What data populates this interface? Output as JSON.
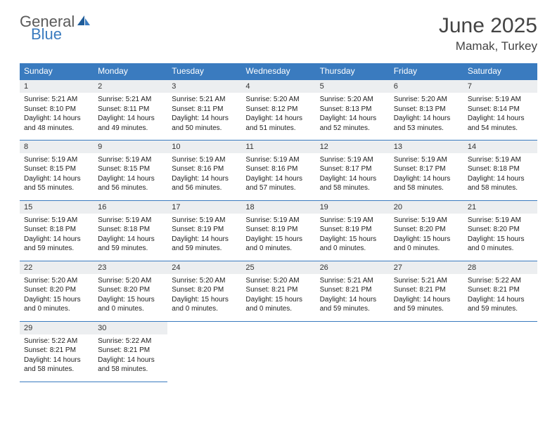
{
  "logo": {
    "text_general": "General",
    "text_blue": "Blue",
    "icon_color_dark": "#1f5c99",
    "icon_color_light": "#3a7bbf"
  },
  "header": {
    "month_title": "June 2025",
    "location": "Mamak, Turkey"
  },
  "colors": {
    "header_bg": "#3a7bbf",
    "header_text": "#ffffff",
    "day_num_bg": "#eceef0",
    "border": "#3a7bbf",
    "body_bg": "#ffffff",
    "text": "#222222"
  },
  "typography": {
    "month_title_size": 30,
    "location_size": 17,
    "weekday_header_size": 12,
    "day_num_size": 11,
    "day_body_size": 10
  },
  "weekdays": [
    "Sunday",
    "Monday",
    "Tuesday",
    "Wednesday",
    "Thursday",
    "Friday",
    "Saturday"
  ],
  "days": [
    {
      "num": "1",
      "sunrise": "Sunrise: 5:21 AM",
      "sunset": "Sunset: 8:10 PM",
      "daylight1": "Daylight: 14 hours",
      "daylight2": "and 48 minutes."
    },
    {
      "num": "2",
      "sunrise": "Sunrise: 5:21 AM",
      "sunset": "Sunset: 8:11 PM",
      "daylight1": "Daylight: 14 hours",
      "daylight2": "and 49 minutes."
    },
    {
      "num": "3",
      "sunrise": "Sunrise: 5:21 AM",
      "sunset": "Sunset: 8:11 PM",
      "daylight1": "Daylight: 14 hours",
      "daylight2": "and 50 minutes."
    },
    {
      "num": "4",
      "sunrise": "Sunrise: 5:20 AM",
      "sunset": "Sunset: 8:12 PM",
      "daylight1": "Daylight: 14 hours",
      "daylight2": "and 51 minutes."
    },
    {
      "num": "5",
      "sunrise": "Sunrise: 5:20 AM",
      "sunset": "Sunset: 8:13 PM",
      "daylight1": "Daylight: 14 hours",
      "daylight2": "and 52 minutes."
    },
    {
      "num": "6",
      "sunrise": "Sunrise: 5:20 AM",
      "sunset": "Sunset: 8:13 PM",
      "daylight1": "Daylight: 14 hours",
      "daylight2": "and 53 minutes."
    },
    {
      "num": "7",
      "sunrise": "Sunrise: 5:19 AM",
      "sunset": "Sunset: 8:14 PM",
      "daylight1": "Daylight: 14 hours",
      "daylight2": "and 54 minutes."
    },
    {
      "num": "8",
      "sunrise": "Sunrise: 5:19 AM",
      "sunset": "Sunset: 8:15 PM",
      "daylight1": "Daylight: 14 hours",
      "daylight2": "and 55 minutes."
    },
    {
      "num": "9",
      "sunrise": "Sunrise: 5:19 AM",
      "sunset": "Sunset: 8:15 PM",
      "daylight1": "Daylight: 14 hours",
      "daylight2": "and 56 minutes."
    },
    {
      "num": "10",
      "sunrise": "Sunrise: 5:19 AM",
      "sunset": "Sunset: 8:16 PM",
      "daylight1": "Daylight: 14 hours",
      "daylight2": "and 56 minutes."
    },
    {
      "num": "11",
      "sunrise": "Sunrise: 5:19 AM",
      "sunset": "Sunset: 8:16 PM",
      "daylight1": "Daylight: 14 hours",
      "daylight2": "and 57 minutes."
    },
    {
      "num": "12",
      "sunrise": "Sunrise: 5:19 AM",
      "sunset": "Sunset: 8:17 PM",
      "daylight1": "Daylight: 14 hours",
      "daylight2": "and 58 minutes."
    },
    {
      "num": "13",
      "sunrise": "Sunrise: 5:19 AM",
      "sunset": "Sunset: 8:17 PM",
      "daylight1": "Daylight: 14 hours",
      "daylight2": "and 58 minutes."
    },
    {
      "num": "14",
      "sunrise": "Sunrise: 5:19 AM",
      "sunset": "Sunset: 8:18 PM",
      "daylight1": "Daylight: 14 hours",
      "daylight2": "and 58 minutes."
    },
    {
      "num": "15",
      "sunrise": "Sunrise: 5:19 AM",
      "sunset": "Sunset: 8:18 PM",
      "daylight1": "Daylight: 14 hours",
      "daylight2": "and 59 minutes."
    },
    {
      "num": "16",
      "sunrise": "Sunrise: 5:19 AM",
      "sunset": "Sunset: 8:18 PM",
      "daylight1": "Daylight: 14 hours",
      "daylight2": "and 59 minutes."
    },
    {
      "num": "17",
      "sunrise": "Sunrise: 5:19 AM",
      "sunset": "Sunset: 8:19 PM",
      "daylight1": "Daylight: 14 hours",
      "daylight2": "and 59 minutes."
    },
    {
      "num": "18",
      "sunrise": "Sunrise: 5:19 AM",
      "sunset": "Sunset: 8:19 PM",
      "daylight1": "Daylight: 15 hours",
      "daylight2": "and 0 minutes."
    },
    {
      "num": "19",
      "sunrise": "Sunrise: 5:19 AM",
      "sunset": "Sunset: 8:19 PM",
      "daylight1": "Daylight: 15 hours",
      "daylight2": "and 0 minutes."
    },
    {
      "num": "20",
      "sunrise": "Sunrise: 5:19 AM",
      "sunset": "Sunset: 8:20 PM",
      "daylight1": "Daylight: 15 hours",
      "daylight2": "and 0 minutes."
    },
    {
      "num": "21",
      "sunrise": "Sunrise: 5:19 AM",
      "sunset": "Sunset: 8:20 PM",
      "daylight1": "Daylight: 15 hours",
      "daylight2": "and 0 minutes."
    },
    {
      "num": "22",
      "sunrise": "Sunrise: 5:20 AM",
      "sunset": "Sunset: 8:20 PM",
      "daylight1": "Daylight: 15 hours",
      "daylight2": "and 0 minutes."
    },
    {
      "num": "23",
      "sunrise": "Sunrise: 5:20 AM",
      "sunset": "Sunset: 8:20 PM",
      "daylight1": "Daylight: 15 hours",
      "daylight2": "and 0 minutes."
    },
    {
      "num": "24",
      "sunrise": "Sunrise: 5:20 AM",
      "sunset": "Sunset: 8:20 PM",
      "daylight1": "Daylight: 15 hours",
      "daylight2": "and 0 minutes."
    },
    {
      "num": "25",
      "sunrise": "Sunrise: 5:20 AM",
      "sunset": "Sunset: 8:21 PM",
      "daylight1": "Daylight: 15 hours",
      "daylight2": "and 0 minutes."
    },
    {
      "num": "26",
      "sunrise": "Sunrise: 5:21 AM",
      "sunset": "Sunset: 8:21 PM",
      "daylight1": "Daylight: 14 hours",
      "daylight2": "and 59 minutes."
    },
    {
      "num": "27",
      "sunrise": "Sunrise: 5:21 AM",
      "sunset": "Sunset: 8:21 PM",
      "daylight1": "Daylight: 14 hours",
      "daylight2": "and 59 minutes."
    },
    {
      "num": "28",
      "sunrise": "Sunrise: 5:22 AM",
      "sunset": "Sunset: 8:21 PM",
      "daylight1": "Daylight: 14 hours",
      "daylight2": "and 59 minutes."
    },
    {
      "num": "29",
      "sunrise": "Sunrise: 5:22 AM",
      "sunset": "Sunset: 8:21 PM",
      "daylight1": "Daylight: 14 hours",
      "daylight2": "and 58 minutes."
    },
    {
      "num": "30",
      "sunrise": "Sunrise: 5:22 AM",
      "sunset": "Sunset: 8:21 PM",
      "daylight1": "Daylight: 14 hours",
      "daylight2": "and 58 minutes."
    }
  ]
}
